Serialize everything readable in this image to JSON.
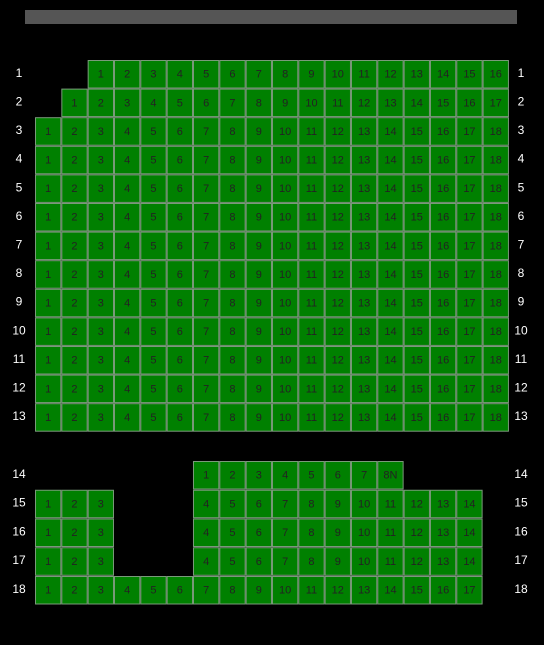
{
  "rows": [
    {
      "label": "1",
      "seats": [
        null,
        null,
        "1",
        "2",
        "3",
        "4",
        "5",
        "6",
        "7",
        "8",
        "9",
        "10",
        "11",
        "12",
        "13",
        "14",
        "15",
        "16"
      ]
    },
    {
      "label": "2",
      "seats": [
        null,
        "1",
        "2",
        "3",
        "4",
        "5",
        "6",
        "7",
        "8",
        "9",
        "10",
        "11",
        "12",
        "13",
        "14",
        "15",
        "16",
        "17"
      ]
    },
    {
      "label": "3",
      "seats": [
        "1",
        "2",
        "3",
        "4",
        "5",
        "6",
        "7",
        "8",
        "9",
        "10",
        "11",
        "12",
        "13",
        "14",
        "15",
        "16",
        "17",
        "18"
      ]
    },
    {
      "label": "4",
      "seats": [
        "1",
        "2",
        "3",
        "4",
        "5",
        "6",
        "7",
        "8",
        "9",
        "10",
        "11",
        "12",
        "13",
        "14",
        "15",
        "16",
        "17",
        "18"
      ]
    },
    {
      "label": "5",
      "seats": [
        "1",
        "2",
        "3",
        "4",
        "5",
        "6",
        "7",
        "8",
        "9",
        "10",
        "11",
        "12",
        "13",
        "14",
        "15",
        "16",
        "17",
        "18"
      ]
    },
    {
      "label": "6",
      "seats": [
        "1",
        "2",
        "3",
        "4",
        "5",
        "6",
        "7",
        "8",
        "9",
        "10",
        "11",
        "12",
        "13",
        "14",
        "15",
        "16",
        "17",
        "18"
      ]
    },
    {
      "label": "7",
      "seats": [
        "1",
        "2",
        "3",
        "4",
        "5",
        "6",
        "7",
        "8",
        "9",
        "10",
        "11",
        "12",
        "13",
        "14",
        "15",
        "16",
        "17",
        "18"
      ]
    },
    {
      "label": "8",
      "seats": [
        "1",
        "2",
        "3",
        "4",
        "5",
        "6",
        "7",
        "8",
        "9",
        "10",
        "11",
        "12",
        "13",
        "14",
        "15",
        "16",
        "17",
        "18"
      ]
    },
    {
      "label": "9",
      "seats": [
        "1",
        "2",
        "3",
        "4",
        "5",
        "6",
        "7",
        "8",
        "9",
        "10",
        "11",
        "12",
        "13",
        "14",
        "15",
        "16",
        "17",
        "18"
      ]
    },
    {
      "label": "10",
      "seats": [
        "1",
        "2",
        "3",
        "4",
        "5",
        "6",
        "7",
        "8",
        "9",
        "10",
        "11",
        "12",
        "13",
        "14",
        "15",
        "16",
        "17",
        "18"
      ]
    },
    {
      "label": "11",
      "seats": [
        "1",
        "2",
        "3",
        "4",
        "5",
        "6",
        "7",
        "8",
        "9",
        "10",
        "11",
        "12",
        "13",
        "14",
        "15",
        "16",
        "17",
        "18"
      ]
    },
    {
      "label": "12",
      "seats": [
        "1",
        "2",
        "3",
        "4",
        "5",
        "6",
        "7",
        "8",
        "9",
        "10",
        "11",
        "12",
        "13",
        "14",
        "15",
        "16",
        "17",
        "18"
      ]
    },
    {
      "label": "13",
      "seats": [
        "1",
        "2",
        "3",
        "4",
        "5",
        "6",
        "7",
        "8",
        "9",
        "10",
        "11",
        "12",
        "13",
        "14",
        "15",
        "16",
        "17",
        "18"
      ]
    },
    {
      "label": "14",
      "seats": [
        null,
        null,
        null,
        null,
        null,
        null,
        "1",
        "2",
        "3",
        "4",
        "5",
        "6",
        "7",
        "8N"
      ]
    },
    {
      "label": "15",
      "seats": [
        "1",
        "2",
        "3",
        null,
        null,
        null,
        "4",
        "5",
        "6",
        "7",
        "8",
        "9",
        "10",
        "11",
        "12",
        "13",
        "14"
      ]
    },
    {
      "label": "16",
      "seats": [
        "1",
        "2",
        "3",
        null,
        null,
        null,
        "4",
        "5",
        "6",
        "7",
        "8",
        "9",
        "10",
        "11",
        "12",
        "13",
        "14"
      ]
    },
    {
      "label": "17",
      "seats": [
        "1",
        "2",
        "3",
        null,
        null,
        null,
        "4",
        "5",
        "6",
        "7",
        "8",
        "9",
        "10",
        "11",
        "12",
        "13",
        "14"
      ]
    },
    {
      "label": "18",
      "seats": [
        "1",
        "2",
        "3",
        "4",
        "5",
        "6",
        "7",
        "8",
        "9",
        "10",
        "11",
        "12",
        "13",
        "14",
        "15",
        "16",
        "17"
      ]
    }
  ]
}
